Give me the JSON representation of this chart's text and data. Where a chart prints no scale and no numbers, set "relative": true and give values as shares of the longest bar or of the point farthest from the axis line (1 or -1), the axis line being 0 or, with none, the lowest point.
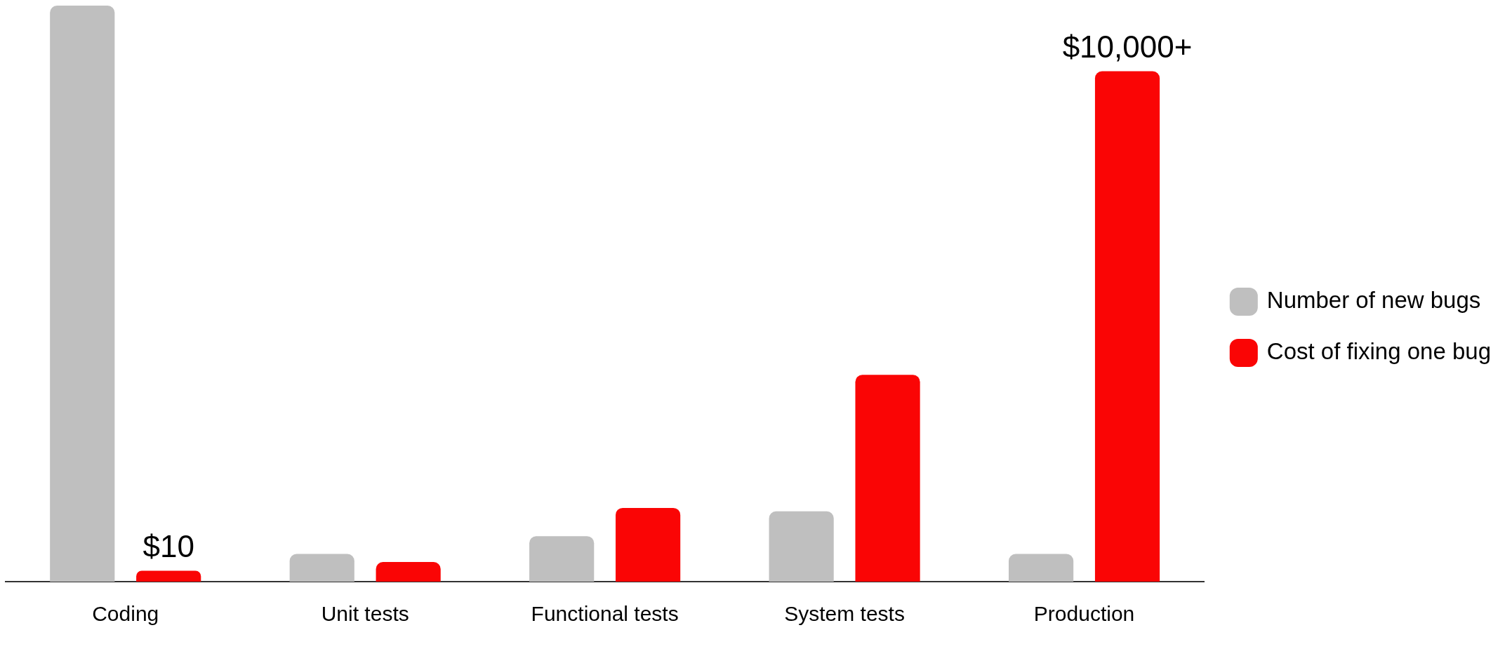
{
  "chart_data": {
    "type": "bar",
    "relative": true,
    "categories": [
      "Coding",
      "Unit tests",
      "Functional tests",
      "System tests",
      "Production"
    ],
    "series": [
      {
        "name": "Number of new bugs",
        "color": "#bfbfbf",
        "values": [
          1,
          0.048,
          0.079,
          0.122,
          0.048
        ]
      },
      {
        "name": "Cost of fixing one bug",
        "color": "#fa0505",
        "values": [
          0.019,
          0.034,
          0.128,
          0.359,
          0.886
        ]
      }
    ],
    "annotations": [
      "$10",
      "$10,000+"
    ],
    "legend": "right",
    "grid": false
  }
}
